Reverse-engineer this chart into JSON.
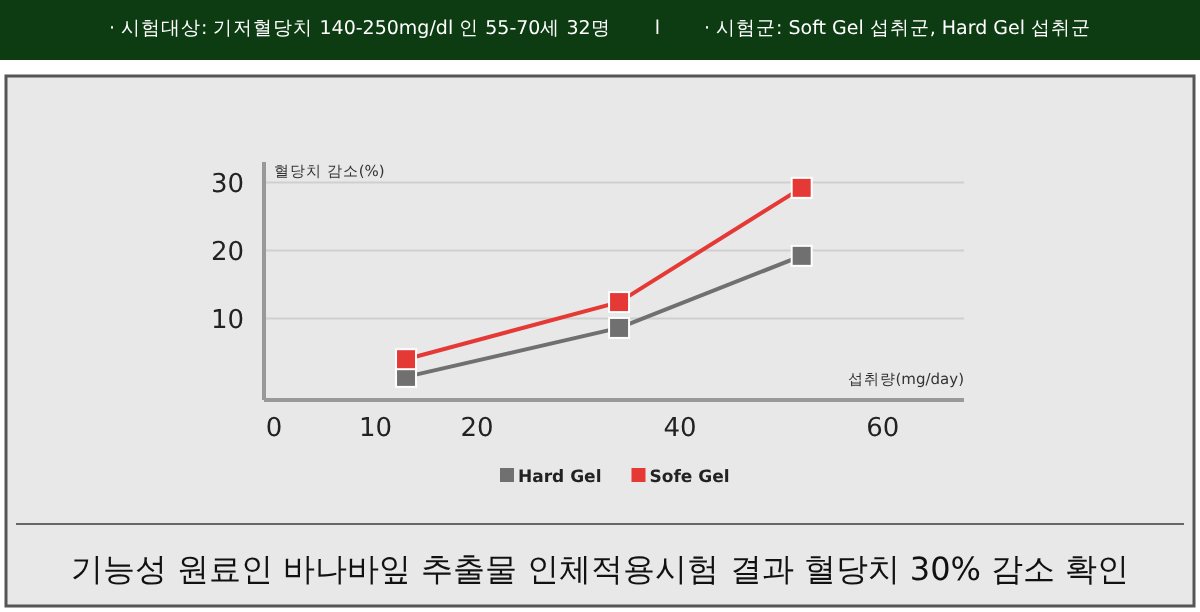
{
  "chart_data": {
    "type": "line",
    "title": "기능성 원료인 바나바잎 추출물 인체적용시험 결과 혈당치 30% 감소 확인",
    "annotations": [
      "· 시험대상: 기저혈당치 140-250mg/dl 인 55-70세 32명",
      "l",
      "· 시험군: Soft Gel 섭취군, Hard Gel 섭취군"
    ],
    "ylabel": "혈당치 감소(%)",
    "xlabel": "섭취량(mg/day)",
    "x": [
      13,
      34,
      52
    ],
    "series": [
      {
        "name": "Hard Gel",
        "color": "#707070",
        "values": [
          1.4,
          8.6,
          19.2
        ]
      },
      {
        "name": "Sofe Gel",
        "color": "#e53935",
        "values": [
          4.0,
          12.4,
          29.2
        ]
      }
    ],
    "xlim": [
      -1,
      68
    ],
    "xticks": [
      0,
      10,
      20,
      40,
      60
    ],
    "ylim": [
      -2,
      33
    ],
    "yticks": [
      10,
      20,
      30
    ],
    "grid": "y",
    "legend": "bottom",
    "marker": "square",
    "line_style": "solid"
  }
}
